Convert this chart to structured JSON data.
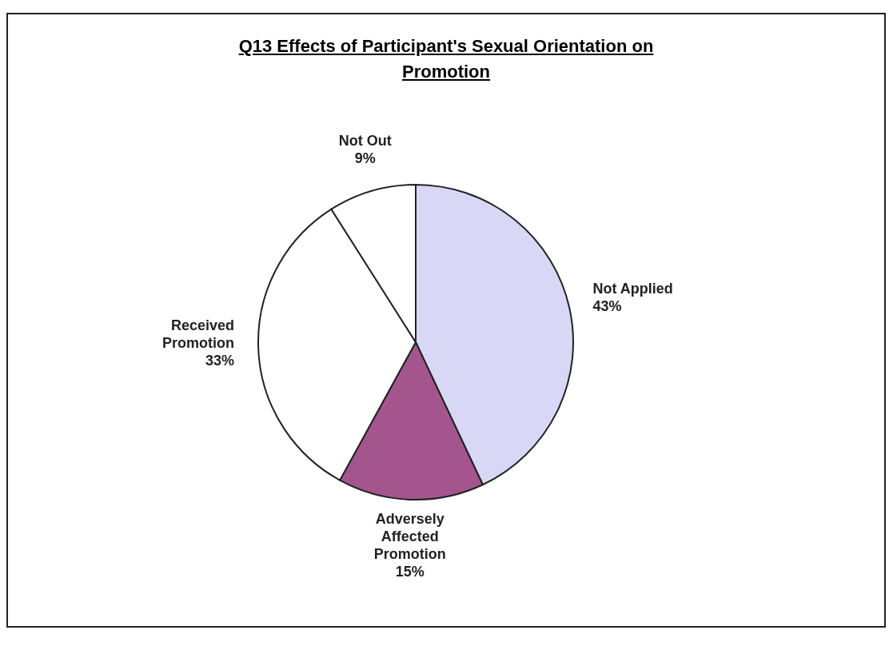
{
  "chart_data": {
    "type": "pie",
    "title": "Q13 Effects of Participant's Sexual Orientation on Promotion",
    "categories": [
      "Not Applied",
      "Adversely Affected Promotion",
      "Received Promotion",
      "Not Out"
    ],
    "values": [
      43,
      15,
      33,
      9
    ],
    "value_labels": [
      "43%",
      "15%",
      "33%",
      "9%"
    ],
    "colors": [
      "#d8d8f6",
      "#a4558e",
      "#ffffff",
      "#ffffff"
    ],
    "legend": false
  }
}
